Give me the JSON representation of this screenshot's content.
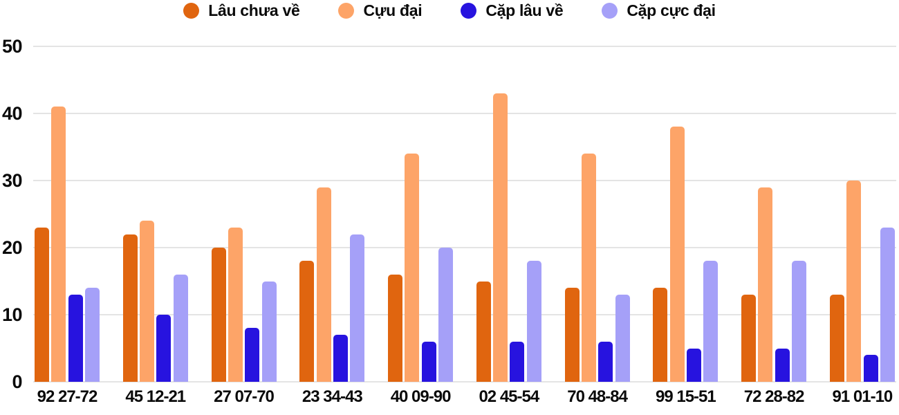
{
  "colors": {
    "background": "#ffffff",
    "grid": "#e4e4e4",
    "text": "#0a0a0a"
  },
  "chart_data": {
    "type": "bar",
    "title": "",
    "xlabel": "",
    "ylabel": "",
    "ylim": [
      0,
      50
    ],
    "yticks": [
      0,
      10,
      20,
      30,
      40,
      50
    ],
    "grid": true,
    "legend_position": "top",
    "categories": [
      "92 27-72",
      "45 12-21",
      "27 07-70",
      "23 34-43",
      "40 09-90",
      "02 45-54",
      "70 48-84",
      "99 15-51",
      "72 28-82",
      "91 01-10"
    ],
    "series": [
      {
        "name": "Lâu chưa về",
        "color": "#e0650f",
        "values": [
          23,
          22,
          20,
          18,
          16,
          15,
          14,
          14,
          13,
          13
        ]
      },
      {
        "name": "Cựu đại",
        "color": "#fda468",
        "values": [
          41,
          24,
          23,
          29,
          34,
          43,
          34,
          38,
          29,
          30
        ]
      },
      {
        "name": "Cặp lâu về",
        "color": "#2713df",
        "values": [
          13,
          10,
          8,
          7,
          6,
          6,
          6,
          5,
          5,
          4
        ]
      },
      {
        "name": "Cặp cực đại",
        "color": "#a5a0f8",
        "values": [
          14,
          16,
          15,
          22,
          20,
          18,
          13,
          18,
          18,
          23
        ]
      }
    ]
  }
}
